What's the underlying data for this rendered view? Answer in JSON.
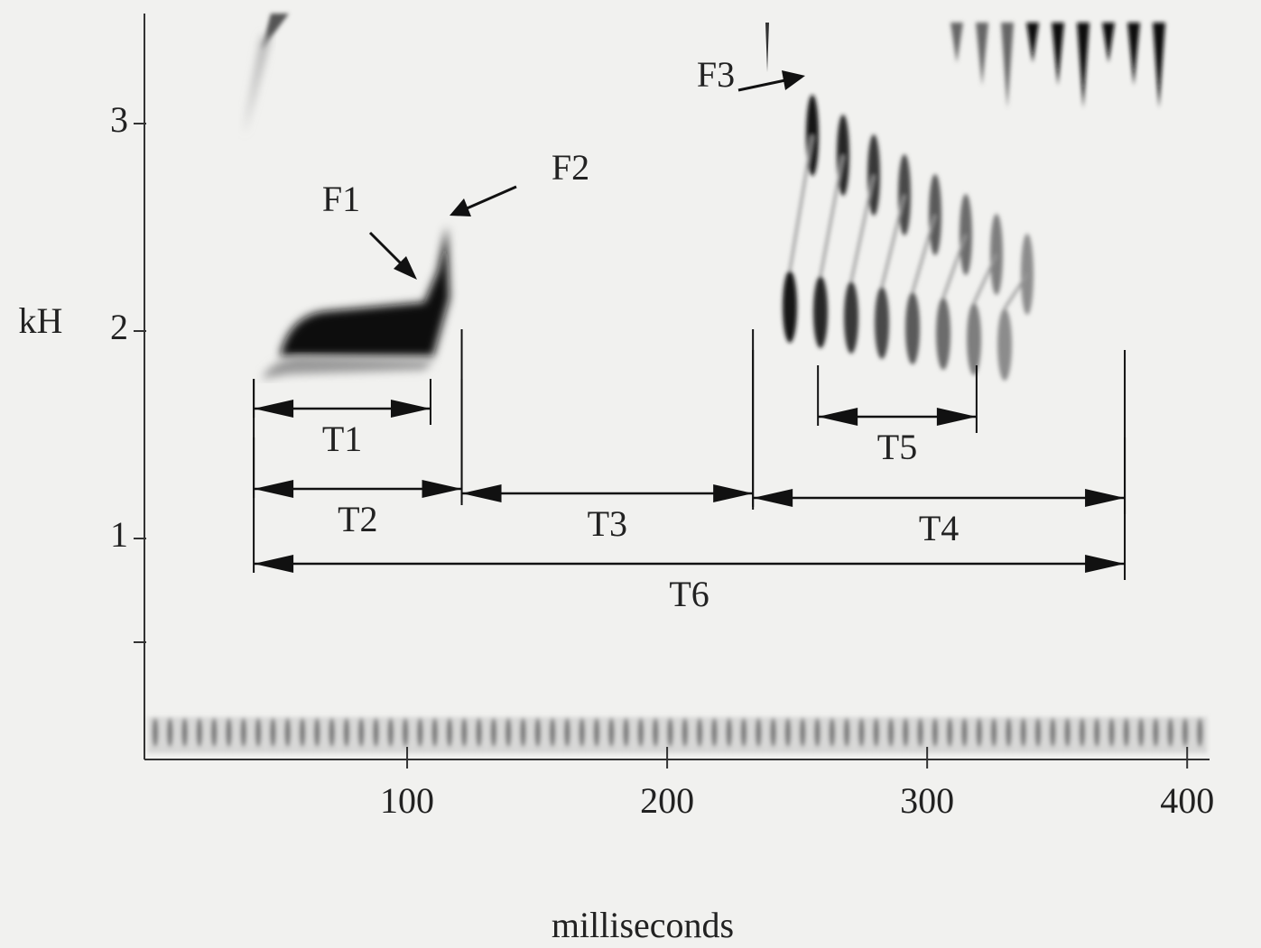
{
  "chart_data": {
    "type": "spectrogram",
    "x_label": "milliseconds",
    "y_label": "kH",
    "xlim": [
      0,
      410
    ],
    "xticks": [
      100,
      200,
      300,
      400
    ],
    "ylim": [
      0,
      3.5
    ],
    "yticks": [
      1,
      2,
      3
    ],
    "y_minor_ticks": [
      0.5
    ],
    "formant_labels": [
      "F1",
      "F2",
      "F3"
    ],
    "intervals": [
      {
        "name": "T1",
        "start": 41,
        "end": 109
      },
      {
        "name": "T2",
        "start": 41,
        "end": 121
      },
      {
        "name": "T3",
        "start": 121,
        "end": 233
      },
      {
        "name": "T4",
        "start": 233,
        "end": 376
      },
      {
        "name": "T5",
        "start": 258,
        "end": 319
      },
      {
        "name": "T6",
        "start": 41,
        "end": 376
      }
    ]
  }
}
